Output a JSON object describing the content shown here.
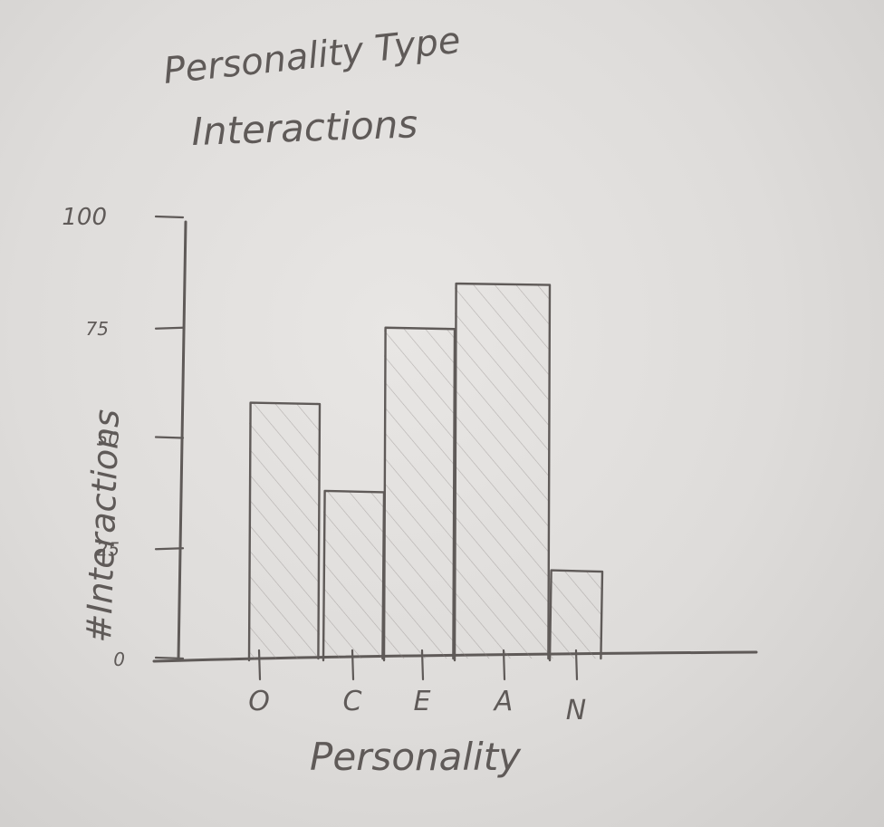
{
  "chart_data": {
    "type": "bar",
    "title_line1": "Personality Type",
    "title_line2": "Interactions",
    "xlabel": "Personality",
    "ylabel": "#Interactions",
    "categories": [
      "O",
      "C",
      "E",
      "A",
      "N"
    ],
    "values": [
      58,
      38,
      75,
      85,
      20
    ],
    "ylim": [
      0,
      100
    ],
    "yticks": [
      "0",
      "25",
      "50",
      "75",
      "100"
    ],
    "ytick_values": [
      0,
      25,
      50,
      75,
      100
    ],
    "bar_fill": "hatched",
    "grid": false,
    "legend": "none"
  },
  "colors": {
    "paper": "#e6e4e2",
    "ink": "#5f5a58"
  }
}
